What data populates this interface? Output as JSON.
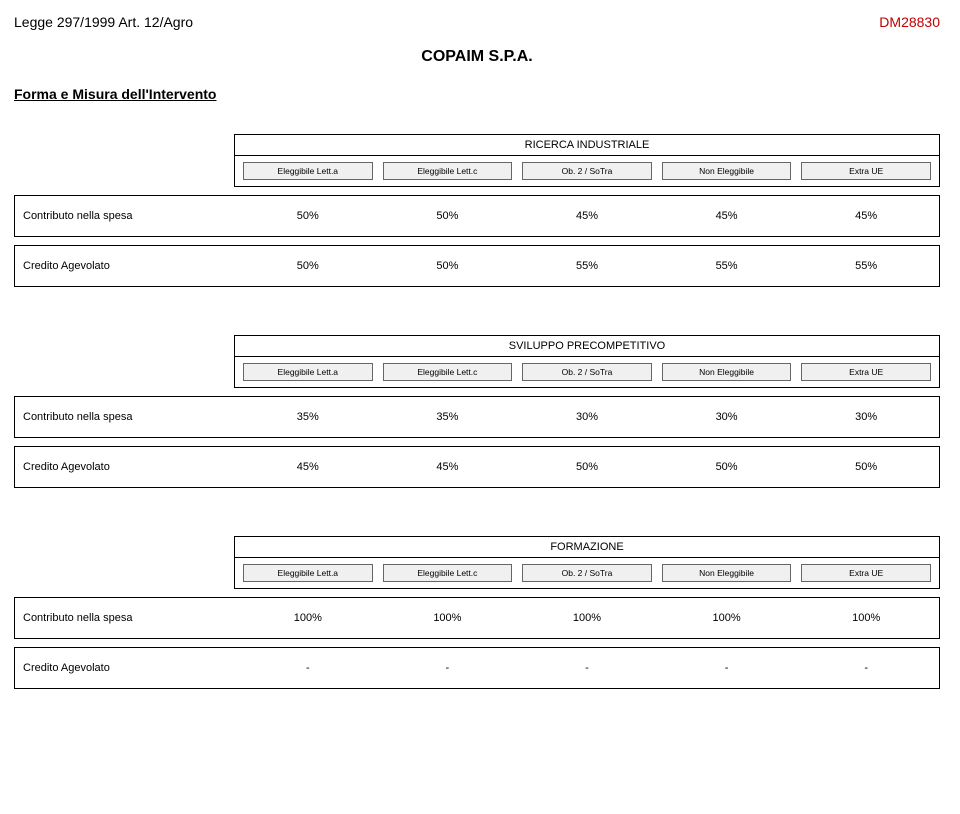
{
  "header": {
    "left": "Legge 297/1999 Art. 12/Agro",
    "right": "DM28830"
  },
  "company": "COPAIM S.P.A.",
  "section_title": "Forma e Misura dell'Intervento",
  "column_headers": [
    "Eleggibile Lett.a",
    "Eleggibile Lett.c",
    "Ob. 2 / SoTra",
    "Non Eleggibile",
    "Extra UE"
  ],
  "row_labels": {
    "contributo": "Contributo nella spesa",
    "credito": "Credito Agevolato"
  },
  "tables": [
    {
      "title": "RICERCA INDUSTRIALE",
      "contributo": [
        "50%",
        "50%",
        "45%",
        "45%",
        "45%"
      ],
      "credito": [
        "50%",
        "50%",
        "55%",
        "55%",
        "55%"
      ]
    },
    {
      "title": "SVILUPPO PRECOMPETITIVO",
      "contributo": [
        "35%",
        "35%",
        "30%",
        "30%",
        "30%"
      ],
      "credito": [
        "45%",
        "45%",
        "50%",
        "50%",
        "50%"
      ]
    },
    {
      "title": "FORMAZIONE",
      "contributo": [
        "100%",
        "100%",
        "100%",
        "100%",
        "100%"
      ],
      "credito": [
        "-",
        "-",
        "-",
        "-",
        "-"
      ]
    }
  ]
}
